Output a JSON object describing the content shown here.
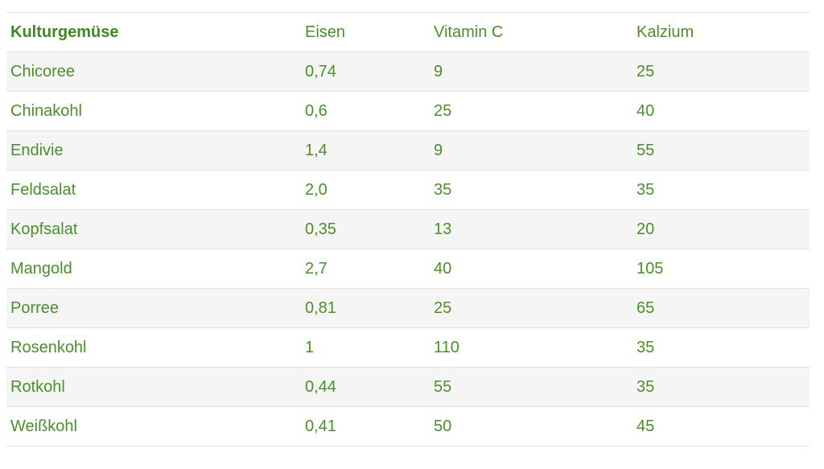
{
  "table": {
    "headers": [
      "Kulturgemüse",
      "Eisen",
      "Vitamin C",
      "Kalzium"
    ],
    "rows": [
      [
        "Chicoree",
        "0,74",
        "9",
        "25"
      ],
      [
        "Chinakohl",
        "0,6",
        "25",
        "40"
      ],
      [
        "Endivie",
        "1,4",
        "9",
        "55"
      ],
      [
        "Feldsalat",
        "2,0",
        "35",
        "35"
      ],
      [
        "Kopfsalat",
        "0,35",
        "13",
        "20"
      ],
      [
        "Mangold",
        "2,7",
        "40",
        "105"
      ],
      [
        "Porree",
        "0,81",
        "25",
        "65"
      ],
      [
        "Rosenkohl",
        "1",
        "110",
        "35"
      ],
      [
        "Rotkohl",
        "0,44",
        "55",
        "35"
      ],
      [
        "Weißkohl",
        "0,41",
        "50",
        "45"
      ]
    ]
  },
  "colors": {
    "text": "#4a8f2a",
    "header_bold": "#3f8a1f",
    "row_stripe": "#f5f5f5",
    "border": "#e2e2e2"
  }
}
